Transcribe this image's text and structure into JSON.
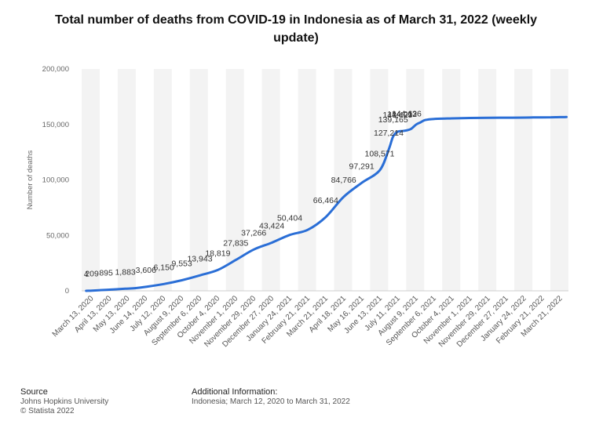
{
  "chart_data": {
    "type": "line",
    "title": "Total number of deaths from COVID-19 in Indonesia as of March 31, 2022 (weekly update)",
    "xlabel": "",
    "ylabel": "Number of deaths",
    "ylim": [
      0,
      200000
    ],
    "yticks": [
      0,
      50000,
      100000,
      150000,
      200000
    ],
    "ytick_labels": [
      "0",
      "50,000",
      "100,000",
      "150,000",
      "200,000"
    ],
    "xtick_labels": [
      "March 13, 2020",
      "April 13, 2020",
      "May 13, 2020",
      "June 14, 2020",
      "July 12, 2020",
      "August 9, 2020",
      "September 6, 2020",
      "October 4, 2020",
      "November 1, 2020",
      "November 29, 2020",
      "December 27, 2020",
      "January 24, 2021",
      "February 21, 2021",
      "March 21, 2021",
      "April 18, 2021",
      "May 16, 2021",
      "June 13, 2021",
      "July 11, 2021",
      "August 9, 2021",
      "September 6, 2021",
      "October 4, 2021",
      "November 1, 2021",
      "November 29, 2021",
      "December 27, 2021",
      "January 24, 2022",
      "February 21, 2022",
      "March 21, 2022"
    ],
    "grid": "vertical bands",
    "legend": "none",
    "color": "#2a6ed6",
    "series": [
      {
        "x": [
          "2020-03-13",
          "2020-03-22",
          "2020-04-13",
          "2020-05-13",
          "2020-05-28",
          "2020-06-14",
          "2020-07-12",
          "2020-08-09",
          "2020-09-06",
          "2020-10-04",
          "2020-11-01",
          "2020-11-29",
          "2020-12-27",
          "2021-01-24",
          "2021-02-21",
          "2021-03-21",
          "2021-04-18",
          "2021-05-16",
          "2021-06-13",
          "2021-06-27",
          "2021-07-04",
          "2021-07-11",
          "2021-07-18",
          "2021-07-25",
          "2021-08-01",
          "2021-08-09",
          "2021-08-16",
          "2021-08-23",
          "2021-09-06",
          "2021-10-04",
          "2021-11-01",
          "2021-11-29",
          "2021-12-27",
          "2022-01-24",
          "2022-02-07",
          "2022-02-21",
          "2022-03-07",
          "2022-03-21",
          "2022-03-31"
        ],
        "values": [
          4,
          209,
          895,
          1883,
          2400,
          3606,
          6150,
          9553,
          13943,
          18819,
          27835,
          37266,
          43424,
          50404,
          55000,
          66464,
          84766,
          97291,
          108571,
          127214,
          139165,
          143423,
          144012,
          144636,
          146000,
          150000,
          152000,
          154000,
          155000,
          155500,
          155800,
          156000,
          156100,
          156200,
          156300,
          156400,
          156500,
          156600,
          156700
        ]
      }
    ],
    "data_labels": [
      {
        "x": "2020-03-13",
        "text": "4"
      },
      {
        "x": "2020-03-22",
        "text": "209"
      },
      {
        "x": "2020-04-13",
        "text": "895"
      },
      {
        "x": "2020-05-13",
        "text": "1,883"
      },
      {
        "x": "2020-06-14",
        "text": "3,606"
      },
      {
        "x": "2020-07-12",
        "text": "6,150"
      },
      {
        "x": "2020-08-09",
        "text": "9,553"
      },
      {
        "x": "2020-09-06",
        "text": "13,943"
      },
      {
        "x": "2020-10-04",
        "text": "18,819"
      },
      {
        "x": "2020-11-01",
        "text": "27,835"
      },
      {
        "x": "2020-11-29",
        "text": "37,266"
      },
      {
        "x": "2020-12-27",
        "text": "43,424"
      },
      {
        "x": "2021-01-24",
        "text": "50,404"
      },
      {
        "x": "2021-03-21",
        "text": "66,464"
      },
      {
        "x": "2021-04-18",
        "text": "84,766"
      },
      {
        "x": "2021-05-16",
        "text": "97,291"
      },
      {
        "x": "2021-06-13",
        "text": "108,571"
      },
      {
        "x": "2021-06-27",
        "text": "127,214"
      },
      {
        "x": "2021-07-04",
        "text": "139,165"
      },
      {
        "x": "2021-07-11",
        "text": "143,423"
      },
      {
        "x": "2021-07-18",
        "text": "144,012"
      },
      {
        "x": "2021-07-25",
        "text": "144,636"
      }
    ]
  },
  "footer": {
    "source_heading": "Source",
    "source_lines": [
      "Johns Hopkins University",
      "© Statista 2022"
    ],
    "info_heading": "Additional Information:",
    "info_line": "Indonesia; March 12, 2020 to March 31, 2022"
  }
}
